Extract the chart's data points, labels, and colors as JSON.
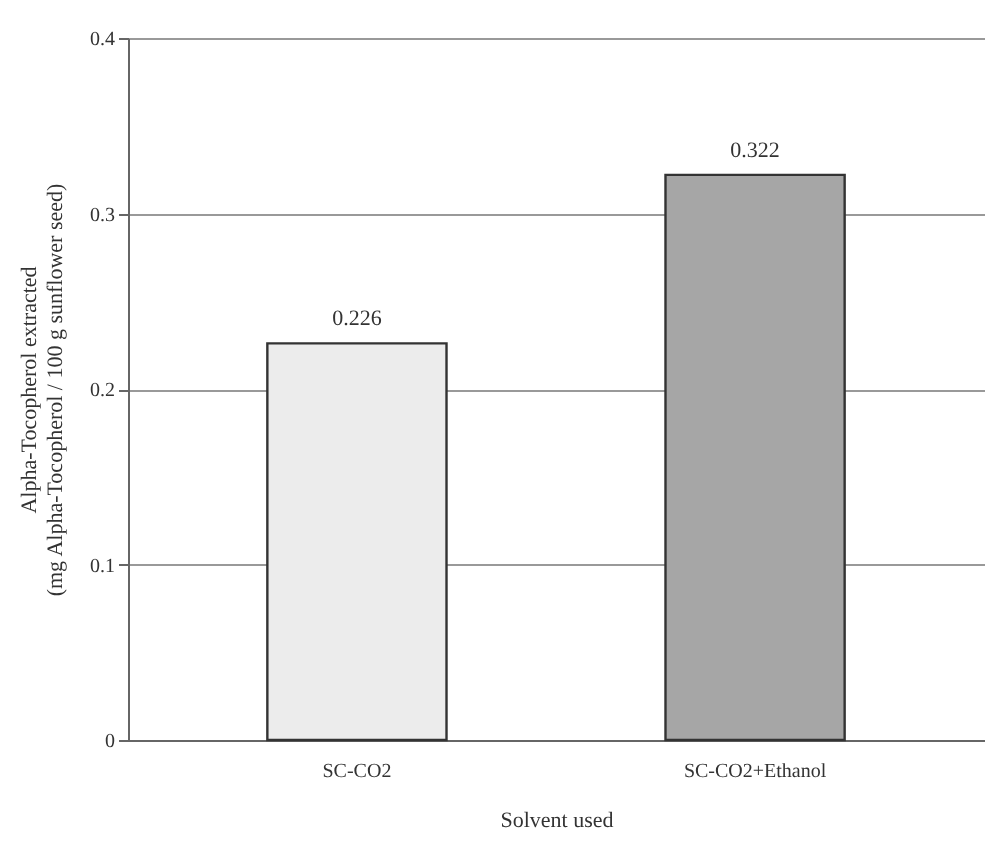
{
  "chart_data": {
    "type": "bar",
    "xlabel": "Solvent used",
    "ylabel": "Alpha-Tocopherol extracted\n(mg Alpha-Tocopherol / 100 g sunflower seed)",
    "categories": [
      "SC-CO2",
      "SC-CO2+Ethanol"
    ],
    "values": [
      0.226,
      0.322
    ],
    "colors": [
      "#ececec",
      "#a6a6a6"
    ],
    "ylim": [
      0,
      0.4
    ],
    "yticks": [
      0,
      0.1,
      0.2,
      0.3,
      0.4
    ],
    "grid": "y",
    "data_labels": true
  }
}
